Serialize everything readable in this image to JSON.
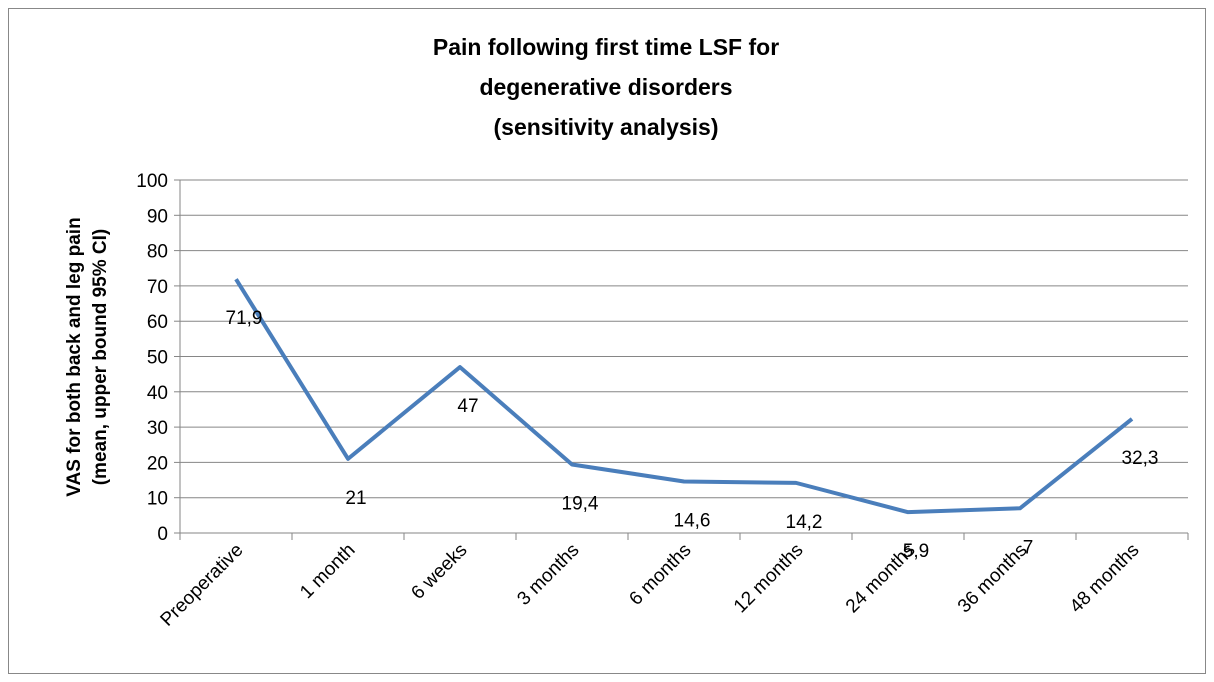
{
  "chart_data": {
    "type": "line",
    "title": [
      "Pain following first time LSF for",
      "degenerative disorders",
      "(sensitivity analysis)"
    ],
    "y_label": [
      "VAS for both back and leg pain",
      "(mean, upper bound 95% CI)"
    ],
    "categories": [
      "Preoperative",
      "1 month",
      "6 weeks",
      "3 months",
      "6 months",
      "12 months",
      "24 months",
      "36 months",
      "48 months"
    ],
    "values": [
      71.9,
      21,
      47,
      19.4,
      14.6,
      14.2,
      5.9,
      7,
      32.3
    ],
    "value_labels": [
      "71,9",
      "21",
      "47",
      "19,4",
      "14,6",
      "14,2",
      "5,9",
      "7",
      "32,3"
    ],
    "color": "#4a7ebb",
    "ylim": [
      0,
      100
    ],
    "yticks": [
      0,
      10,
      20,
      30,
      40,
      50,
      60,
      70,
      80,
      90,
      100
    ],
    "grid": true
  }
}
